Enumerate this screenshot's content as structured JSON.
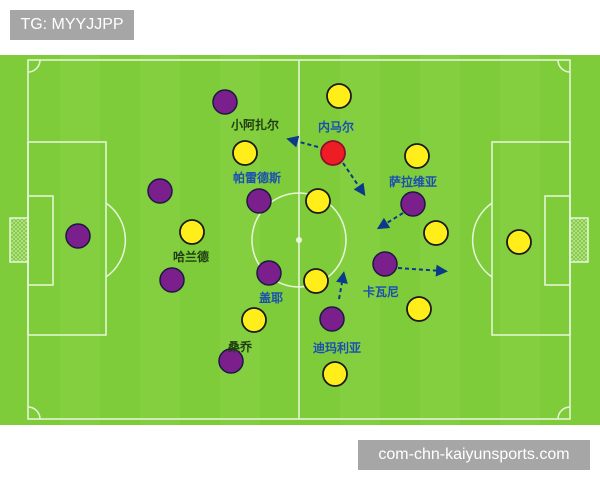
{
  "watermark_top": "TG: MYYJJPP",
  "watermark_bottom": "com-chn-kaiyunsports.com",
  "colors": {
    "pitch": "#7fcc3a",
    "purple_team": "#7a1f8c",
    "yellow_team": "#ffee1a",
    "highlight": "#ee1c24",
    "label_blue": "#1a4fb0",
    "label_green": "#1f3d12",
    "arrow": "#0b3a8a"
  },
  "labels": [
    {
      "text": "小阿扎尔",
      "color": "label_green"
    },
    {
      "text": "内马尔",
      "color": "label_blue"
    },
    {
      "text": "帕雷德斯",
      "color": "label_blue"
    },
    {
      "text": "萨拉维亚",
      "color": "label_blue"
    },
    {
      "text": "哈兰德",
      "color": "label_green"
    },
    {
      "text": "盖耶",
      "color": "label_blue"
    },
    {
      "text": "卡瓦尼",
      "color": "label_blue"
    },
    {
      "text": "桑乔",
      "color": "label_green"
    },
    {
      "text": "迪玛利亚",
      "color": "label_blue"
    }
  ]
}
